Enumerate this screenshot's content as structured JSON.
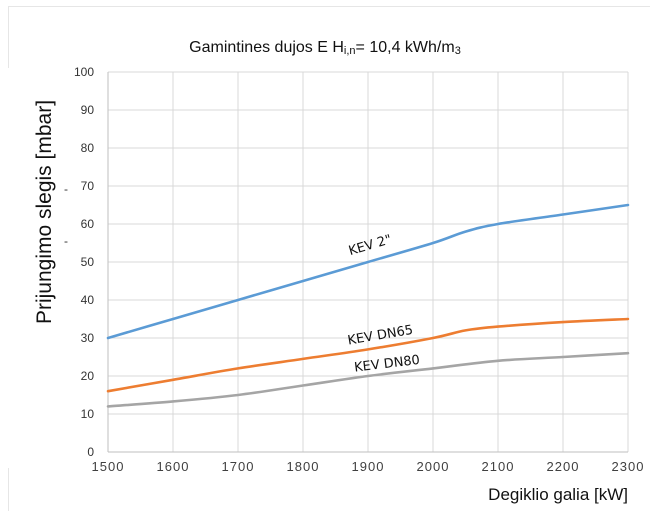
{
  "chart_data": {
    "type": "line",
    "title": "Gamintines dujos E H",
    "title_subscript": "i,n",
    "title_suffix": "= 10,4 kWh/m",
    "title_suffix_subscript": "3",
    "xlabel": "Degiklio galia [kW]",
    "ylabel": "Prijungimo slegis [mbar]",
    "xlim": [
      1500,
      2300
    ],
    "ylim": [
      0,
      100
    ],
    "x_ticks": [
      "1500",
      "1600",
      "1700",
      "1800",
      "1900",
      "2000",
      "2100",
      "2200",
      "2300"
    ],
    "y_ticks": [
      "0",
      "10",
      "20",
      "30",
      "40",
      "50",
      "60",
      "70",
      "80",
      "90",
      "100"
    ],
    "grid": true,
    "legend": "none",
    "stray_marks": [
      "-",
      "-"
    ],
    "series": [
      {
        "name": "KEV 2\"",
        "color": "#5b9bd5",
        "x": [
          1500,
          1600,
          1700,
          1800,
          1900,
          2000,
          2050,
          2100,
          2200,
          2300
        ],
        "y": [
          30,
          35,
          40,
          45,
          50,
          55,
          58,
          60,
          62.5,
          65
        ]
      },
      {
        "name": "KEV DN65",
        "color": "#ed7d31",
        "x": [
          1500,
          1600,
          1700,
          1800,
          1900,
          2000,
          2050,
          2100,
          2200,
          2300
        ],
        "y": [
          16,
          19,
          22,
          24.5,
          27,
          30,
          32,
          33,
          34.2,
          35
        ]
      },
      {
        "name": "KEV DN80",
        "color": "#a5a5a5",
        "x": [
          1500,
          1600,
          1700,
          1800,
          1900,
          2000,
          2100,
          2200,
          2300
        ],
        "y": [
          12,
          13.3,
          15,
          17.5,
          20,
          22,
          24,
          25,
          26
        ]
      }
    ]
  }
}
